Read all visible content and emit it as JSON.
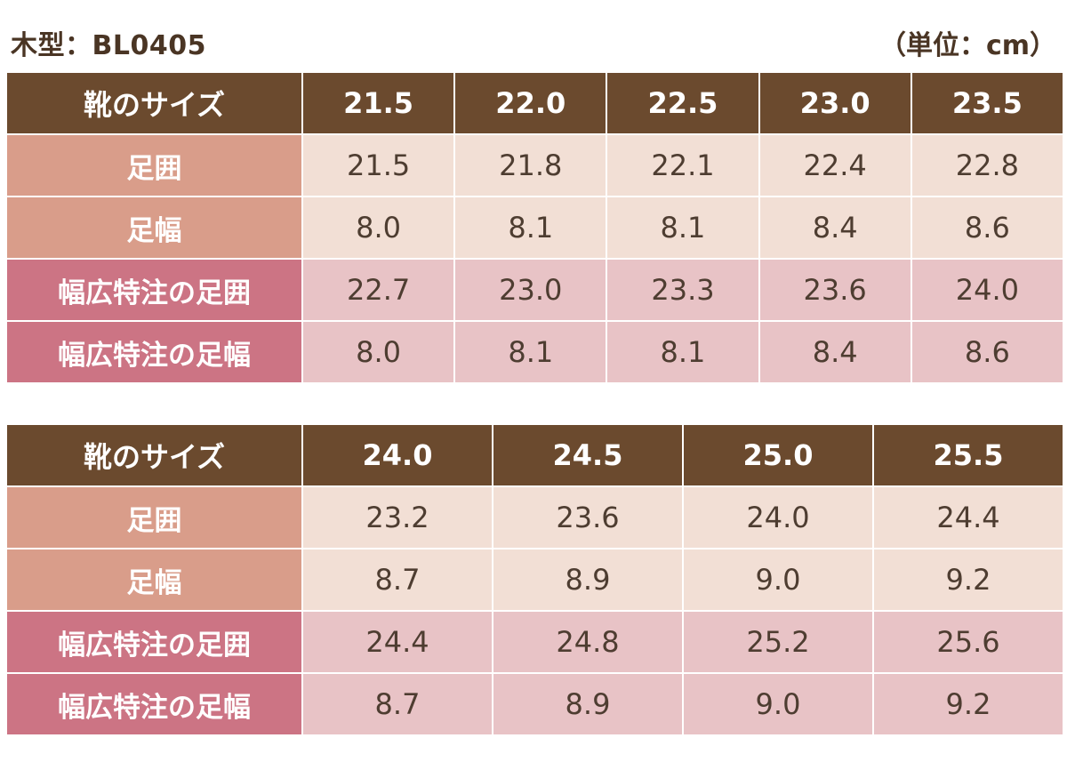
{
  "header": {
    "title": "木型：BL0405",
    "unit": "（単位：cm）"
  },
  "tables": [
    {
      "header_label": "靴のサイズ",
      "sizes": [
        "21.5",
        "22.0",
        "22.5",
        "23.0",
        "23.5"
      ],
      "rows": [
        {
          "label": "足囲",
          "kind": "std",
          "values": [
            "21.5",
            "21.8",
            "22.1",
            "22.4",
            "22.8"
          ]
        },
        {
          "label": "足幅",
          "kind": "std",
          "values": [
            "8.0",
            "8.1",
            "8.1",
            "8.4",
            "8.6"
          ]
        },
        {
          "label": "幅広特注の足囲",
          "kind": "wide",
          "values": [
            "22.7",
            "23.0",
            "23.3",
            "23.6",
            "24.0"
          ]
        },
        {
          "label": "幅広特注の足幅",
          "kind": "wide",
          "values": [
            "8.0",
            "8.1",
            "8.1",
            "8.4",
            "8.6"
          ]
        }
      ]
    },
    {
      "header_label": "靴のサイズ",
      "sizes": [
        "24.0",
        "24.5",
        "25.0",
        "25.5"
      ],
      "rows": [
        {
          "label": "足囲",
          "kind": "std",
          "values": [
            "23.2",
            "23.6",
            "24.0",
            "24.4"
          ]
        },
        {
          "label": "足幅",
          "kind": "std",
          "values": [
            "8.7",
            "8.9",
            "9.0",
            "9.2"
          ]
        },
        {
          "label": "幅広特注の足囲",
          "kind": "wide",
          "values": [
            "24.4",
            "24.8",
            "25.2",
            "25.6"
          ]
        },
        {
          "label": "幅広特注の足幅",
          "kind": "wide",
          "values": [
            "8.7",
            "8.9",
            "9.0",
            "9.2"
          ]
        }
      ]
    }
  ],
  "colors": {
    "header_bg": "#6b4a2e",
    "std_label_bg": "#d99d8a",
    "std_value_bg": "#f2dfd5",
    "wide_label_bg": "#cc7484",
    "wide_value_bg": "#e8c3c6"
  }
}
